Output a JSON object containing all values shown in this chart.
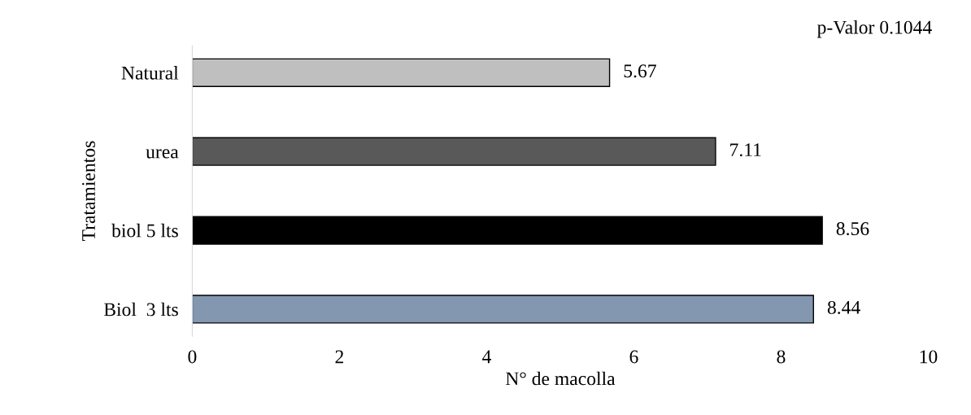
{
  "chart_data": {
    "type": "bar",
    "orientation": "horizontal",
    "categories": [
      "Natural",
      "urea",
      "biol 5 lts",
      "Biol  3 lts"
    ],
    "values": [
      5.67,
      7.11,
      8.56,
      8.44
    ],
    "colors": [
      "#bfbfbf",
      "#595959",
      "#000000",
      "#8497b0"
    ],
    "xlim": [
      0,
      10
    ],
    "xticks": [
      0,
      2,
      4,
      6,
      8,
      10
    ],
    "xlabel": "N° de macolla",
    "ylabel": "Tratamientos",
    "annotations": [
      "p-Valor 0.1044"
    ],
    "data_labels": true,
    "grid": false,
    "legend": false
  }
}
